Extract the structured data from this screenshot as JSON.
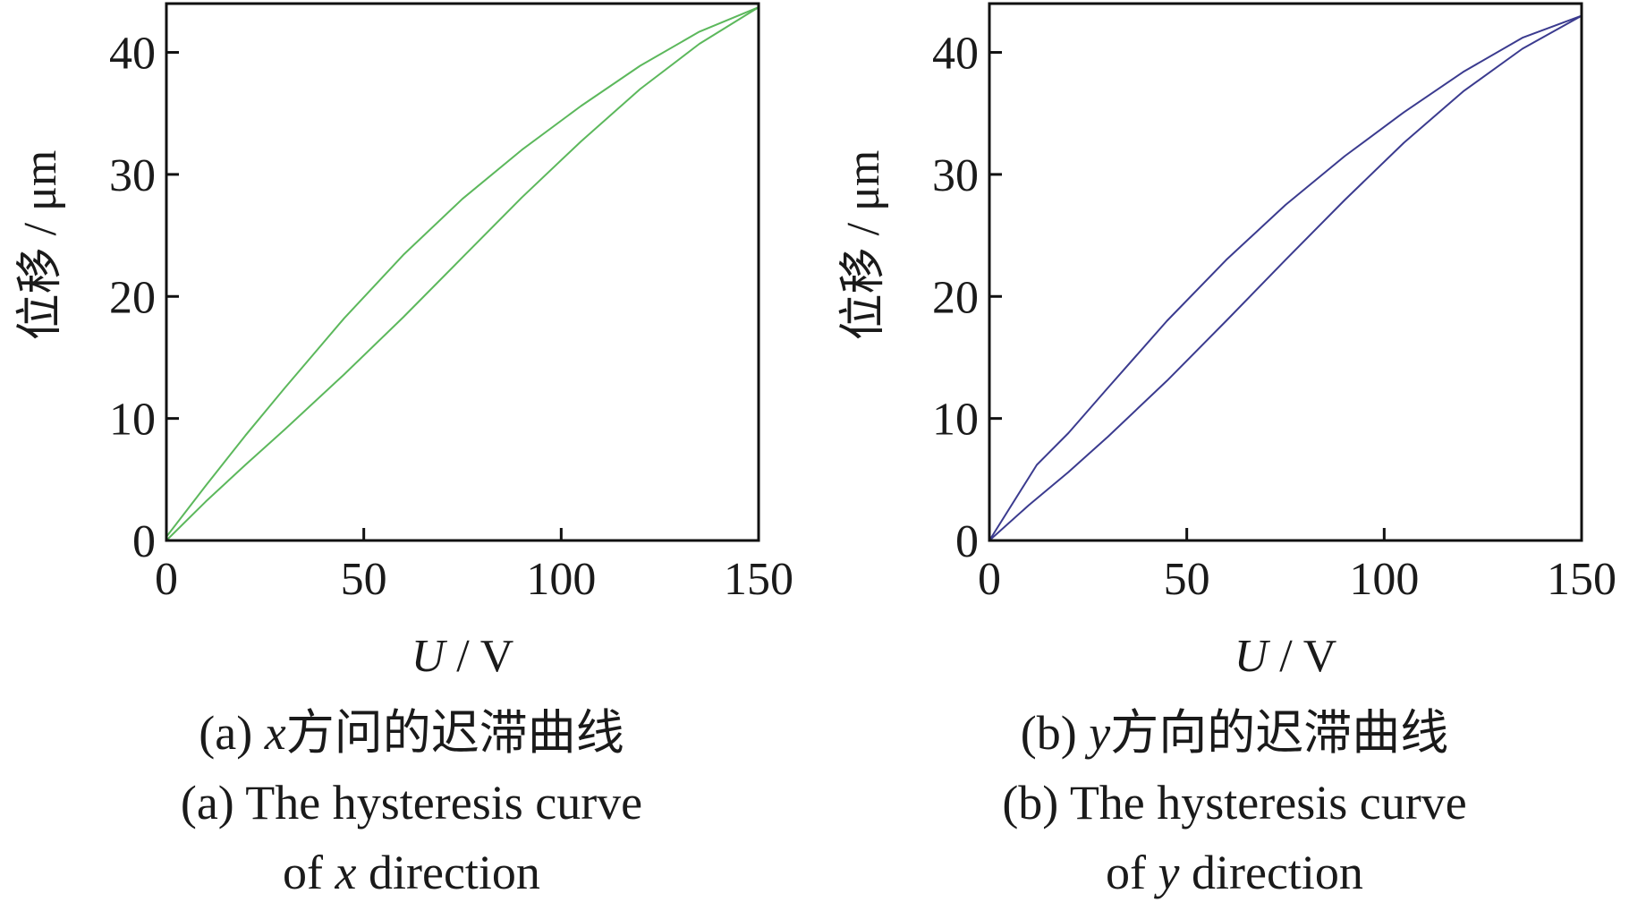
{
  "chart_data": [
    {
      "type": "line",
      "panel": "a",
      "ylabel": "位移 / μm",
      "xlabel": {
        "var": "U",
        "unit": " / V"
      },
      "xlim": [
        0,
        150
      ],
      "ylim": [
        0,
        44
      ],
      "xticks": [
        0,
        50,
        100,
        150
      ],
      "yticks": [
        0,
        10,
        20,
        30,
        40
      ],
      "color": "#5cb85c",
      "series": [
        {
          "x": [
            0,
            10,
            20,
            30,
            45,
            60,
            75,
            90,
            105,
            120,
            135,
            150
          ],
          "y": [
            0,
            3.2,
            6.2,
            9.1,
            13.6,
            18.3,
            23.2,
            28.1,
            32.7,
            37.0,
            40.7,
            43.7
          ]
        },
        {
          "x": [
            150,
            135,
            120,
            105,
            90,
            75,
            60,
            45,
            30,
            20,
            10,
            0
          ],
          "y": [
            43.7,
            41.7,
            38.9,
            35.6,
            32.0,
            28.0,
            23.4,
            18.2,
            12.5,
            8.6,
            4.5,
            0.3
          ]
        }
      ],
      "caption_cn": {
        "prefix": "(a)  ",
        "var": "x",
        "text": "方问的迟滞曲线"
      },
      "caption_en1": "(a)  The hysteresis curve",
      "caption_en2": {
        "prefix": "of ",
        "var": "x",
        "suffix": " direction"
      }
    },
    {
      "type": "line",
      "panel": "b",
      "ylabel": "位移 / μm",
      "xlabel": {
        "var": "U",
        "unit": " / V"
      },
      "xlim": [
        0,
        150
      ],
      "ylim": [
        0,
        44
      ],
      "xticks": [
        0,
        50,
        100,
        150
      ],
      "yticks": [
        0,
        10,
        20,
        30,
        40
      ],
      "color": "#3b3b8f",
      "series": [
        {
          "x": [
            0,
            10,
            20,
            30,
            45,
            60,
            75,
            90,
            105,
            120,
            135,
            150
          ],
          "y": [
            0,
            2.9,
            5.6,
            8.5,
            13.1,
            18.0,
            23.0,
            27.9,
            32.6,
            36.8,
            40.3,
            43.0
          ]
        },
        {
          "x": [
            150,
            135,
            120,
            105,
            90,
            75,
            60,
            45,
            30,
            20,
            12,
            0
          ],
          "y": [
            43.0,
            41.2,
            38.4,
            35.1,
            31.5,
            27.5,
            23.0,
            18.0,
            12.5,
            8.8,
            6.2,
            0
          ]
        }
      ],
      "caption_cn": {
        "prefix": "(b)  ",
        "var": "y",
        "text": "方向的迟滞曲线"
      },
      "caption_en1": "(b)  The hysteresis curve",
      "caption_en2": {
        "prefix": "of ",
        "var": "y",
        "suffix": " direction"
      }
    }
  ]
}
